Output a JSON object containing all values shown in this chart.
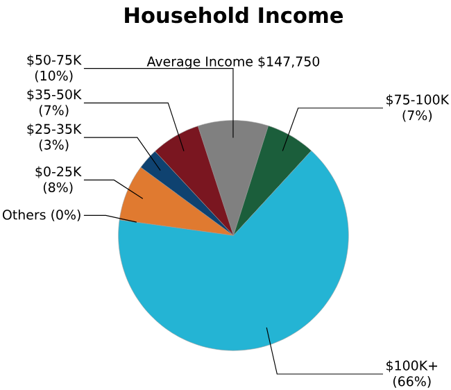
{
  "chart_data": {
    "type": "pie",
    "title": "Household Income",
    "subtitle": "Average Income  $147,750",
    "categories": [
      "$50-75K",
      "$75-100K",
      "$100K+",
      "Others",
      "$0-25K",
      "$25-35K",
      "$35-50K"
    ],
    "values": [
      10,
      7,
      66,
      0,
      8,
      3,
      7
    ],
    "value_labels": [
      "(10%)",
      "(7%)",
      "(66%)",
      "(0%)",
      "(8%)",
      "(3%)",
      "(7%)"
    ],
    "colors": [
      "#808080",
      "#1b5e3b",
      "#24b4d4",
      "#24b4d4",
      "#e07a30",
      "#0f4270",
      "#7a1620"
    ]
  }
}
